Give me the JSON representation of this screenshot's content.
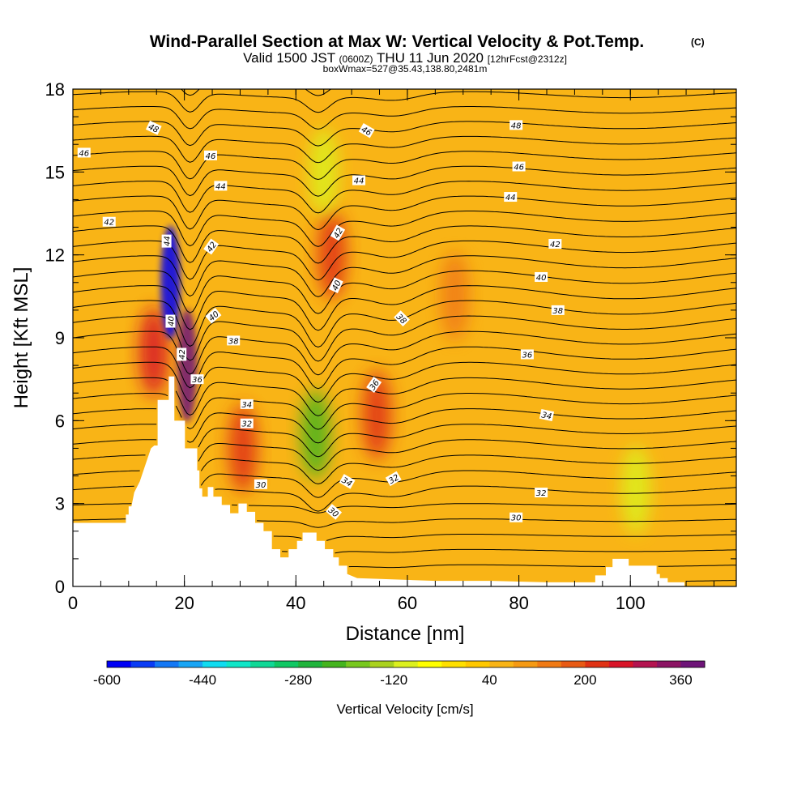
{
  "title": "Wind-Parallel Section at Max W: Vertical Velocity & Pot.Temp.",
  "title_mark": "(C)",
  "subtitle": {
    "valid_prefix": "Valid 1500 JST",
    "zulu": "(0600Z)",
    "date": "THU 11 Jun 2020",
    "fcst": "[12hrFcst@2312z]"
  },
  "box_note": "boxWmax=527@35.43,138.80,2481m",
  "colors": {
    "background_field": "#f9b416",
    "terrain": "#ffffff",
    "contour": "#000000"
  },
  "chart_data": {
    "type": "heatmap",
    "xlabel": "Distance [nm]",
    "ylabel": "Height [Kft MSL]",
    "xlim": [
      0,
      119
    ],
    "ylim": [
      0,
      18
    ],
    "x_ticks": [
      "0",
      "20",
      "40",
      "60",
      "80",
      "100"
    ],
    "y_ticks": [
      "0",
      "3",
      "6",
      "9",
      "12",
      "15",
      "18"
    ],
    "colorbar": {
      "label": "Vertical Velocity [cm/s]",
      "tick_labels": [
        "-600",
        "-440",
        "-280",
        "-120",
        "40",
        "200",
        "360"
      ],
      "levels": [
        -600,
        -560,
        -520,
        -480,
        -440,
        -400,
        -360,
        -320,
        -280,
        -240,
        -200,
        -160,
        -120,
        -80,
        -40,
        0,
        40,
        80,
        120,
        160,
        200,
        240,
        280,
        320,
        360,
        400
      ],
      "colors": [
        "#0000f5",
        "#0a3cf5",
        "#1478f5",
        "#19a5f5",
        "#10dcf0",
        "#10e6c8",
        "#10d896",
        "#10c864",
        "#20b43c",
        "#44b41e",
        "#78c81e",
        "#aad21e",
        "#dcf01e",
        "#ffff00",
        "#ffe000",
        "#ffc800",
        "#f9b416",
        "#f59a14",
        "#f07a14",
        "#e85a14",
        "#e03214",
        "#d81428",
        "#b41450",
        "#8c1464",
        "#6e1478"
      ]
    },
    "terrain_profile": {
      "x": [
        0,
        9.5,
        9.5,
        10,
        10,
        10.5,
        11,
        12,
        13,
        14,
        14.6,
        15.2,
        15.2,
        17.2,
        17.2,
        18.2,
        18.2,
        20.1,
        20.1,
        22.3,
        22.3,
        22.7,
        22.7,
        23.2,
        23.2,
        24.2,
        24.2,
        25.2,
        25.2,
        26.7,
        26.7,
        28.2,
        28.2,
        29.7,
        29.7,
        31.2,
        31.2,
        32.7,
        32.7,
        34.2,
        34.2,
        35.7,
        35.7,
        37.2,
        37.2,
        38.7,
        38.7,
        40.2,
        40.2,
        41.2,
        41.2,
        42.2,
        42.2,
        43.7,
        43.7,
        45.2,
        45.2,
        46.7,
        46.7,
        47.7,
        47.7,
        49.2,
        49.2,
        51,
        65,
        75,
        85,
        93.7,
        93.7,
        95.6,
        95.6,
        96.8,
        96.8,
        99.7,
        99.7,
        104.7,
        104.7,
        105.3,
        105.3,
        106.7,
        106.7,
        109.7,
        109.7,
        119
      ],
      "y": [
        2.3,
        2.3,
        2.6,
        2.6,
        2.9,
        2.9,
        3.4,
        3.8,
        4.4,
        5.0,
        5.1,
        5.1,
        6.75,
        6.75,
        7.6,
        7.6,
        6.0,
        6.0,
        5.0,
        5.0,
        4.2,
        4.2,
        3.55,
        3.55,
        3.25,
        3.25,
        3.6,
        3.6,
        3.25,
        3.25,
        2.95,
        2.95,
        2.65,
        2.65,
        3.0,
        3.0,
        2.7,
        2.7,
        2.3,
        2.3,
        2.0,
        2.0,
        1.35,
        1.35,
        1.05,
        1.05,
        1.35,
        1.35,
        1.65,
        1.65,
        1.95,
        1.95,
        1.95,
        1.95,
        1.65,
        1.65,
        1.35,
        1.35,
        1.05,
        1.05,
        0.75,
        0.75,
        0.45,
        0.3,
        0.2,
        0.2,
        0.15,
        0.15,
        0.4,
        0.4,
        0.7,
        0.7,
        1.0,
        1.0,
        0.75,
        0.75,
        0.45,
        0.45,
        0.3,
        0.3,
        0.15,
        0.15,
        0.0,
        0.0
      ]
    },
    "updraft_cores": [
      {
        "x": 14.5,
        "y": 8.5,
        "w_cms": 240
      },
      {
        "x": 20.5,
        "y": 8.0,
        "w_cms": 400
      },
      {
        "x": 30.5,
        "y": 5.0,
        "w_cms": 200
      },
      {
        "x": 46.5,
        "y": 12.0,
        "w_cms": 200
      },
      {
        "x": 54.5,
        "y": 6.2,
        "w_cms": 200
      },
      {
        "x": 68.5,
        "y": 10.5,
        "w_cms": 120
      }
    ],
    "downdraft_cores": [
      {
        "x": 17.5,
        "y": 11.0,
        "w_cms": -600
      },
      {
        "x": 43.5,
        "y": 5.5,
        "w_cms": -240
      },
      {
        "x": 45.0,
        "y": 15.0,
        "w_cms": -100
      },
      {
        "x": 101.0,
        "y": 3.5,
        "w_cms": -100
      }
    ],
    "theta_contours": {
      "units": "K",
      "labels": [
        {
          "text": "48",
          "x": 14.5,
          "y": 16.6,
          "rot": 25
        },
        {
          "text": "46",
          "x": 2,
          "y": 15.7,
          "rot": 0
        },
        {
          "text": "42",
          "x": 6.5,
          "y": 13.2,
          "rot": 0
        },
        {
          "text": "44",
          "x": 16.8,
          "y": 12.5,
          "rot": -90
        },
        {
          "text": "40",
          "x": 17.5,
          "y": 9.6,
          "rot": -90
        },
        {
          "text": "42",
          "x": 19.5,
          "y": 8.4,
          "rot": -90
        },
        {
          "text": "36",
          "x": 22.3,
          "y": 7.5,
          "rot": 0
        },
        {
          "text": "46",
          "x": 24.7,
          "y": 15.6,
          "rot": 0
        },
        {
          "text": "44",
          "x": 26.5,
          "y": 14.5,
          "rot": 0
        },
        {
          "text": "42",
          "x": 24.8,
          "y": 12.3,
          "rot": -55
        },
        {
          "text": "40",
          "x": 25.2,
          "y": 9.8,
          "rot": -40
        },
        {
          "text": "38",
          "x": 28.8,
          "y": 8.9,
          "rot": 0
        },
        {
          "text": "34",
          "x": 31.2,
          "y": 6.6,
          "rot": 0
        },
        {
          "text": "32",
          "x": 31.2,
          "y": 5.9,
          "rot": 0
        },
        {
          "text": "30",
          "x": 33.7,
          "y": 3.7,
          "rot": 0
        },
        {
          "text": "46",
          "x": 52.7,
          "y": 16.5,
          "rot": 30
        },
        {
          "text": "44",
          "x": 51.3,
          "y": 14.7,
          "rot": 0
        },
        {
          "text": "42",
          "x": 47.5,
          "y": 12.8,
          "rot": -60
        },
        {
          "text": "40",
          "x": 47.2,
          "y": 10.9,
          "rot": -65
        },
        {
          "text": "38",
          "x": 59,
          "y": 9.7,
          "rot": 45
        },
        {
          "text": "36",
          "x": 54,
          "y": 7.3,
          "rot": -55
        },
        {
          "text": "34",
          "x": 49.2,
          "y": 3.8,
          "rot": 30
        },
        {
          "text": "32",
          "x": 57.5,
          "y": 3.9,
          "rot": -30
        },
        {
          "text": "30",
          "x": 46.8,
          "y": 2.7,
          "rot": 40
        },
        {
          "text": "48",
          "x": 79.5,
          "y": 16.7,
          "rot": 0
        },
        {
          "text": "46",
          "x": 80,
          "y": 15.2,
          "rot": 0
        },
        {
          "text": "44",
          "x": 78.5,
          "y": 14.1,
          "rot": 0
        },
        {
          "text": "42",
          "x": 86.5,
          "y": 12.4,
          "rot": 0
        },
        {
          "text": "40",
          "x": 84,
          "y": 11.2,
          "rot": 0
        },
        {
          "text": "38",
          "x": 87,
          "y": 10.0,
          "rot": 0
        },
        {
          "text": "36",
          "x": 81.5,
          "y": 8.4,
          "rot": 0
        },
        {
          "text": "34",
          "x": 85,
          "y": 6.2,
          "rot": 12
        },
        {
          "text": "32",
          "x": 84,
          "y": 3.4,
          "rot": 0
        },
        {
          "text": "30",
          "x": 79.5,
          "y": 2.5,
          "rot": 0
        }
      ]
    }
  }
}
